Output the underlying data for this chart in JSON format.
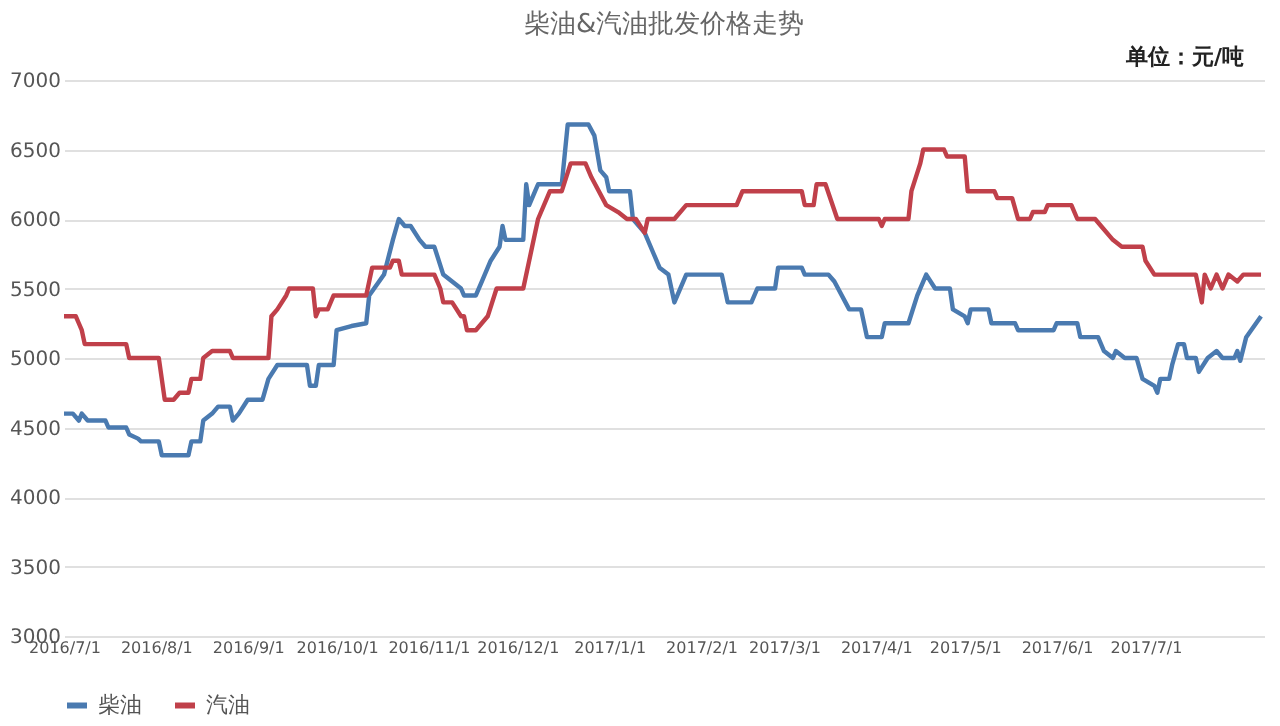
{
  "chart_data": {
    "type": "line",
    "title": "柴油&汽油批发价格走势",
    "annotations": [
      "单位：元/吨"
    ],
    "xlim": [
      "2016-07-01",
      "2017-08-10"
    ],
    "xticks": [
      {
        "value": "2016-07-01",
        "label": "2016/7/1"
      },
      {
        "value": "2016-08-01",
        "label": "2016/8/1"
      },
      {
        "value": "2016-09-01",
        "label": "2016/9/1"
      },
      {
        "value": "2016-10-01",
        "label": "2016/10/1"
      },
      {
        "value": "2016-11-01",
        "label": "2016/11/1"
      },
      {
        "value": "2016-12-01",
        "label": "2016/12/1"
      },
      {
        "value": "2017-01-01",
        "label": "2017/1/1"
      },
      {
        "value": "2017-02-01",
        "label": "2017/2/1"
      },
      {
        "value": "2017-03-01",
        "label": "2017/3/1"
      },
      {
        "value": "2017-04-01",
        "label": "2017/4/1"
      },
      {
        "value": "2017-05-01",
        "label": "2017/5/1"
      },
      {
        "value": "2017-06-01",
        "label": "2017/6/1"
      },
      {
        "value": "2017-07-01",
        "label": "2017/7/1"
      }
    ],
    "ylim": [
      3000,
      7000
    ],
    "yticks": [
      3000,
      3500,
      4000,
      4500,
      5000,
      5500,
      6000,
      6500,
      7000
    ],
    "grid": "y",
    "legend": "bottom",
    "marker": "none",
    "line_style": "solid",
    "series": [
      {
        "name": "柴油",
        "color": "#4a7ab0",
        "x": [
          "2016-07-01",
          "2016-07-04",
          "2016-07-06",
          "2016-07-07",
          "2016-07-09",
          "2016-07-15",
          "2016-07-16",
          "2016-07-22",
          "2016-07-23",
          "2016-07-26",
          "2016-07-27",
          "2016-08-02",
          "2016-08-03",
          "2016-08-12",
          "2016-08-13",
          "2016-08-16",
          "2016-08-17",
          "2016-08-20",
          "2016-08-22",
          "2016-08-26",
          "2016-08-27",
          "2016-08-29",
          "2016-09-01",
          "2016-09-06",
          "2016-09-08",
          "2016-09-11",
          "2016-09-21",
          "2016-09-22",
          "2016-09-24",
          "2016-09-25",
          "2016-09-30",
          "2016-10-01",
          "2016-10-06",
          "2016-10-11",
          "2016-10-12",
          "2016-10-17",
          "2016-10-20",
          "2016-10-22",
          "2016-10-24",
          "2016-10-26",
          "2016-10-29",
          "2016-10-31",
          "2016-11-03",
          "2016-11-06",
          "2016-11-09",
          "2016-11-12",
          "2016-11-13",
          "2016-11-17",
          "2016-11-19",
          "2016-11-22",
          "2016-11-25",
          "2016-11-26",
          "2016-11-27",
          "2016-12-03",
          "2016-12-04",
          "2016-12-05",
          "2016-12-07",
          "2016-12-08",
          "2016-12-16",
          "2016-12-18",
          "2016-12-25",
          "2016-12-27",
          "2016-12-29",
          "2016-12-31",
          "2017-01-01",
          "2017-01-08",
          "2017-01-09",
          "2017-01-13",
          "2017-01-16",
          "2017-01-18",
          "2017-01-21",
          "2017-01-23",
          "2017-01-27",
          "2017-02-08",
          "2017-02-10",
          "2017-02-18",
          "2017-02-20",
          "2017-02-26",
          "2017-02-27",
          "2017-03-07",
          "2017-03-08",
          "2017-03-16",
          "2017-03-18",
          "2017-03-23",
          "2017-03-27",
          "2017-03-29",
          "2017-04-03",
          "2017-04-04",
          "2017-04-12",
          "2017-04-15",
          "2017-04-18",
          "2017-04-21",
          "2017-04-26",
          "2017-04-27",
          "2017-05-01",
          "2017-05-02",
          "2017-05-03",
          "2017-05-09",
          "2017-05-10",
          "2017-05-18",
          "2017-05-19",
          "2017-05-31",
          "2017-06-01",
          "2017-06-08",
          "2017-06-09",
          "2017-06-15",
          "2017-06-17",
          "2017-06-20",
          "2017-06-21",
          "2017-06-24",
          "2017-06-28",
          "2017-06-30",
          "2017-07-04",
          "2017-07-05",
          "2017-07-06",
          "2017-07-09",
          "2017-07-10",
          "2017-07-12",
          "2017-07-14",
          "2017-07-15",
          "2017-07-18",
          "2017-07-19",
          "2017-07-22",
          "2017-07-25",
          "2017-07-27",
          "2017-07-31",
          "2017-08-01",
          "2017-08-02",
          "2017-08-04",
          "2017-08-09"
        ],
        "values": [
          4600,
          4600,
          4550,
          4600,
          4550,
          4550,
          4500,
          4500,
          4450,
          4420,
          4400,
          4400,
          4300,
          4300,
          4400,
          4400,
          4550,
          4600,
          4650,
          4650,
          4550,
          4600,
          4700,
          4700,
          4850,
          4950,
          4950,
          4800,
          4800,
          4950,
          4950,
          5200,
          5230,
          5250,
          5450,
          5600,
          5850,
          6000,
          5950,
          5950,
          5850,
          5800,
          5800,
          5600,
          5550,
          5500,
          5450,
          5450,
          5550,
          5700,
          5800,
          5950,
          5850,
          5850,
          6250,
          6100,
          6200,
          6250,
          6250,
          6680,
          6680,
          6600,
          6350,
          6300,
          6200,
          6200,
          6000,
          5900,
          5750,
          5650,
          5600,
          5400,
          5600,
          5600,
          5400,
          5400,
          5500,
          5500,
          5650,
          5650,
          5600,
          5600,
          5550,
          5350,
          5350,
          5150,
          5150,
          5250,
          5250,
          5450,
          5600,
          5500,
          5500,
          5350,
          5300,
          5250,
          5350,
          5350,
          5250,
          5250,
          5200,
          5200,
          5250,
          5250,
          5150,
          5150,
          5050,
          5000,
          5050,
          5000,
          5000,
          4850,
          4800,
          4750,
          4850,
          4850,
          4950,
          5100,
          5100,
          5000,
          5000,
          4900,
          5000,
          5050,
          5000,
          5000,
          5050,
          4980,
          5150,
          5300
        ]
      },
      {
        "name": "汽油",
        "color": "#c0404a",
        "x": [
          "2016-07-01",
          "2016-07-05",
          "2016-07-06",
          "2016-07-07",
          "2016-07-08",
          "2016-07-22",
          "2016-07-23",
          "2016-08-02",
          "2016-08-04",
          "2016-08-07",
          "2016-08-09",
          "2016-08-12",
          "2016-08-13",
          "2016-08-16",
          "2016-08-17",
          "2016-08-20",
          "2016-08-26",
          "2016-08-27",
          "2016-09-08",
          "2016-09-09",
          "2016-09-11",
          "2016-09-14",
          "2016-09-15",
          "2016-09-23",
          "2016-09-24",
          "2016-09-25",
          "2016-09-28",
          "2016-09-30",
          "2016-10-11",
          "2016-10-13",
          "2016-10-19",
          "2016-10-20",
          "2016-10-22",
          "2016-10-23",
          "2016-11-03",
          "2016-11-05",
          "2016-11-06",
          "2016-11-09",
          "2016-11-12",
          "2016-11-13",
          "2016-11-14",
          "2016-11-17",
          "2016-11-19",
          "2016-11-21",
          "2016-11-24",
          "2016-12-03",
          "2016-12-06",
          "2016-12-08",
          "2016-12-12",
          "2016-12-16",
          "2016-12-19",
          "2016-12-24",
          "2016-12-26",
          "2016-12-31",
          "2017-01-04",
          "2017-01-07",
          "2017-01-10",
          "2017-01-13",
          "2017-01-14",
          "2017-01-23",
          "2017-01-27",
          "2017-02-13",
          "2017-02-15",
          "2017-03-07",
          "2017-03-08",
          "2017-03-11",
          "2017-03-12",
          "2017-03-15",
          "2017-03-19",
          "2017-04-02",
          "2017-04-03",
          "2017-04-04",
          "2017-04-12",
          "2017-04-13",
          "2017-04-16",
          "2017-04-17",
          "2017-04-24",
          "2017-04-25",
          "2017-05-01",
          "2017-05-02",
          "2017-05-11",
          "2017-05-12",
          "2017-05-17",
          "2017-05-19",
          "2017-05-23",
          "2017-05-24",
          "2017-05-28",
          "2017-05-29",
          "2017-06-06",
          "2017-06-08",
          "2017-06-14",
          "2017-06-16",
          "2017-06-20",
          "2017-06-23",
          "2017-06-30",
          "2017-07-01",
          "2017-07-04",
          "2017-07-18",
          "2017-07-20",
          "2017-07-21",
          "2017-07-23",
          "2017-07-25",
          "2017-07-27",
          "2017-07-29",
          "2017-08-01",
          "2017-08-03",
          "2017-08-09"
        ],
        "values": [
          5300,
          5300,
          5250,
          5200,
          5100,
          5100,
          5000,
          5000,
          4700,
          4700,
          4750,
          4750,
          4850,
          4850,
          5000,
          5050,
          5050,
          5000,
          5000,
          5300,
          5350,
          5450,
          5500,
          5500,
          5300,
          5350,
          5350,
          5450,
          5450,
          5650,
          5650,
          5700,
          5700,
          5600,
          5600,
          5500,
          5400,
          5400,
          5300,
          5300,
          5200,
          5200,
          5250,
          5300,
          5500,
          5500,
          5800,
          6000,
          6200,
          6200,
          6400,
          6400,
          6300,
          6100,
          6050,
          6000,
          6000,
          5900,
          6000,
          6000,
          6100,
          6100,
          6200,
          6200,
          6100,
          6100,
          6250,
          6250,
          6000,
          6000,
          5950,
          6000,
          6000,
          6200,
          6400,
          6500,
          6500,
          6450,
          6450,
          6200,
          6200,
          6150,
          6150,
          6000,
          6000,
          6050,
          6050,
          6100,
          6100,
          6000,
          6000,
          5950,
          5850,
          5800,
          5800,
          5700,
          5600,
          5600,
          5400,
          5600,
          5500,
          5600,
          5500,
          5600,
          5550,
          5600,
          5600
        ]
      }
    ]
  }
}
